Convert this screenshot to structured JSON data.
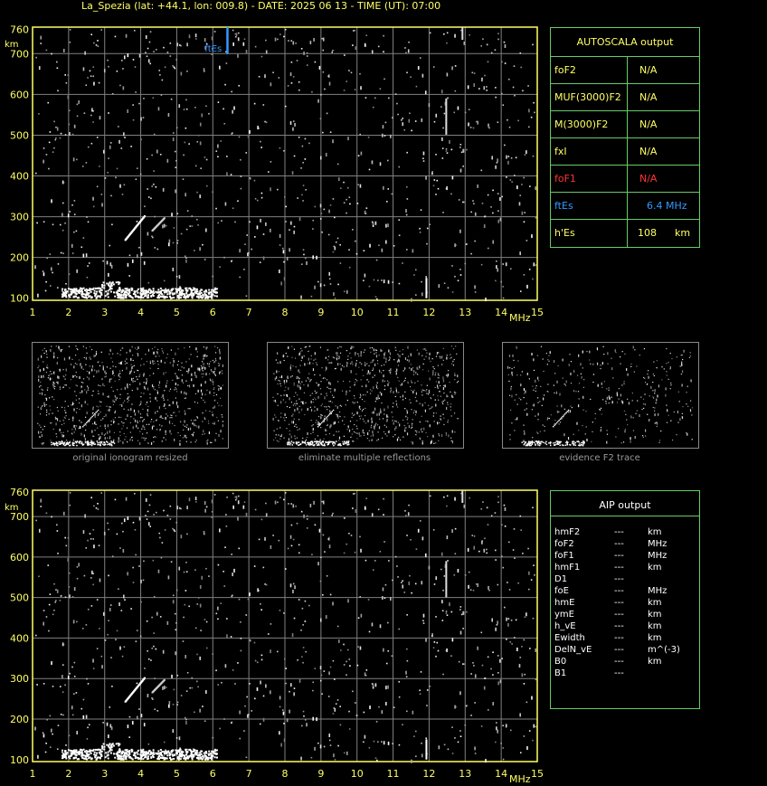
{
  "header": {
    "title": "La_Spezia (lat: +44.1, lon: 009.8) - DATE: 2025 06 13 - TIME (UT): 07:00"
  },
  "ionogram": {
    "y_unit": "km",
    "x_unit": "MHz",
    "y_ticks": [
      "760",
      "700",
      "600",
      "500",
      "400",
      "300",
      "200",
      "100"
    ],
    "x_ticks": [
      "1",
      "2",
      "3",
      "4",
      "5",
      "6",
      "7",
      "8",
      "9",
      "10",
      "11",
      "12",
      "13",
      "14",
      "15"
    ],
    "es_marker_label": "ftEs",
    "colors": {
      "axis": "#ffff66",
      "grid": "#808080",
      "es_marker": "#3399ff",
      "trace": "#ffffff"
    }
  },
  "thumbnails": [
    {
      "caption": "original ionogram resized"
    },
    {
      "caption": "eliminate multiple reflections"
    },
    {
      "caption": "evidence F2 trace"
    }
  ],
  "autoscala": {
    "title": "AUTOSCALA output",
    "rows": [
      {
        "label": "foF2",
        "value": "N/A",
        "unit": "",
        "color": "#ffff66"
      },
      {
        "label": "MUF(3000)F2",
        "value": "N/A",
        "unit": "",
        "color": "#ffff66"
      },
      {
        "label": "M(3000)F2",
        "value": "N/A",
        "unit": "",
        "color": "#ffff66"
      },
      {
        "label": "fxI",
        "value": "N/A",
        "unit": "",
        "color": "#ffff66"
      },
      {
        "label": "foF1",
        "value": "N/A",
        "unit": "",
        "color": "#ff3333"
      },
      {
        "label": "ftEs",
        "value": "6.4 MHz",
        "unit": "",
        "color": "#3399ff"
      },
      {
        "label": "h'Es",
        "value": "108",
        "unit": "km",
        "color": "#ffff66"
      }
    ]
  },
  "aip": {
    "title": "AIP output",
    "rows": [
      {
        "label": "hmF2",
        "value": "---",
        "unit": "km"
      },
      {
        "label": "foF2",
        "value": "---",
        "unit": "MHz"
      },
      {
        "label": "foF1",
        "value": "---",
        "unit": "MHz"
      },
      {
        "label": "hmF1",
        "value": "---",
        "unit": "km"
      },
      {
        "label": "D1",
        "value": "---",
        "unit": ""
      },
      {
        "label": "foE",
        "value": "---",
        "unit": "MHz"
      },
      {
        "label": "hmE",
        "value": "---",
        "unit": "km"
      },
      {
        "label": "ymE",
        "value": "---",
        "unit": "km"
      },
      {
        "label": "h_vE",
        "value": "---",
        "unit": "km"
      },
      {
        "label": "Ewidth",
        "value": "---",
        "unit": "km"
      },
      {
        "label": "DelN_vE",
        "value": "---",
        "unit": "m^(-3)"
      },
      {
        "label": "B0",
        "value": "---",
        "unit": "km"
      },
      {
        "label": "B1",
        "value": "---",
        "unit": ""
      }
    ]
  }
}
